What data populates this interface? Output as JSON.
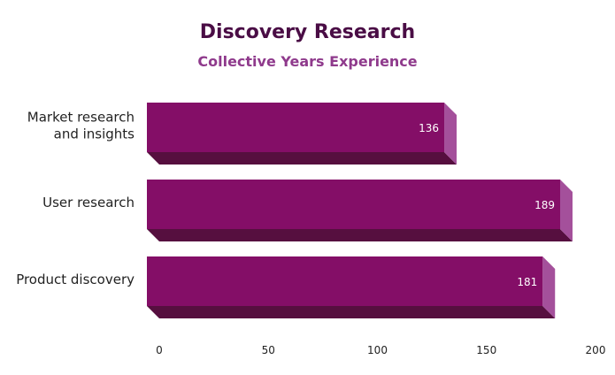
{
  "chart_data": {
    "type": "bar",
    "orientation": "horizontal",
    "style": "3d",
    "title": "Discovery Research",
    "subtitle": "Collective Years Experience",
    "categories": [
      [
        "Market research",
        "and insights"
      ],
      [
        "User research"
      ],
      [
        "Product discovery"
      ]
    ],
    "values": [
      136,
      189,
      181
    ],
    "xlim": [
      0,
      200
    ],
    "xticks": [
      "0",
      "50",
      "100",
      "150",
      "200"
    ],
    "grid": false,
    "legend": false,
    "colors": {
      "title": "#4a0d45",
      "subtitle": "#8f3a8c",
      "bar_front": "#840e67",
      "bar_side": "#a4509b",
      "bar_bottom": "#560f3f",
      "data_label": "#ffffff",
      "axis_text": "#222222"
    }
  }
}
